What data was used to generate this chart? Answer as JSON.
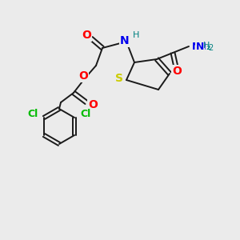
{
  "background_color": "#ebebeb",
  "bond_color": "#1a1a1a",
  "atom_colors": {
    "S": "#cccc00",
    "N": "#0000ee",
    "O": "#ff0000",
    "Cl": "#00bb00",
    "H": "#008080",
    "C": "#1a1a1a"
  },
  "figsize": [
    3.0,
    3.0
  ],
  "dpi": 100
}
